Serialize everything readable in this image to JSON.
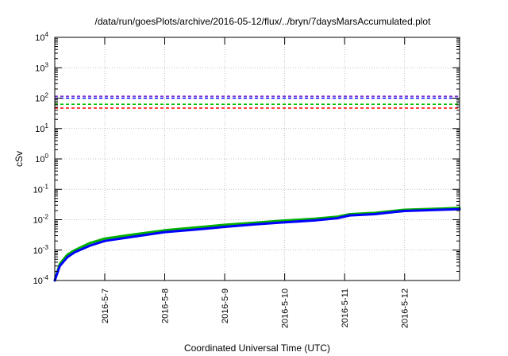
{
  "chart_data": {
    "type": "line",
    "title": "/data/run/goesPlots/archive/2016-05-12/flux/../bryn/7daysMarsAccumulated.plot",
    "xlabel": "Coordinated Universal Time (UTC)",
    "ylabel": "cSv",
    "yscale": "log",
    "ylim_exp": [
      -4,
      4
    ],
    "y_tick_base": "10",
    "y_tick_exponents": [
      "-4",
      "-3",
      "-2",
      "-1",
      "0",
      "1",
      "2",
      "3",
      "4"
    ],
    "xlim": [
      "2016-05-06T04:00",
      "2016-05-12T22:00"
    ],
    "x_ticks": [
      "2016-5-7",
      "2016-5-8",
      "2016-5-9",
      "2016-5-10",
      "2016-5-11",
      "2016-5-12"
    ],
    "x_tick_dates": [
      "2016-05-07",
      "2016-05-08",
      "2016-05-09",
      "2016-05-10",
      "2016-05-11",
      "2016-05-12"
    ],
    "grid": true,
    "series": [
      {
        "color": "#00b000",
        "style": "solid",
        "x": [
          "2016-05-06T04:00",
          "2016-05-06T06:00",
          "2016-05-06T09:00",
          "2016-05-06T12:00",
          "2016-05-06T18:00",
          "2016-05-07T00:00",
          "2016-05-07T12:00",
          "2016-05-08T00:00",
          "2016-05-08T12:00",
          "2016-05-09T00:00",
          "2016-05-09T12:00",
          "2016-05-10T00:00",
          "2016-05-10T12:00",
          "2016-05-10T21:00",
          "2016-05-11T02:00",
          "2016-05-11T12:00",
          "2016-05-11T20:00",
          "2016-05-12T00:00",
          "2016-05-12T12:00",
          "2016-05-12T22:00"
        ],
        "y": [
          0.0001,
          0.00035,
          0.0007,
          0.001,
          0.0017,
          0.0024,
          0.0033,
          0.0045,
          0.0055,
          0.0068,
          0.008,
          0.0094,
          0.0108,
          0.0125,
          0.0152,
          0.0168,
          0.0198,
          0.0212,
          0.0228,
          0.0245
        ]
      },
      {
        "color": "#0000ff",
        "style": "solid",
        "x": [
          "2016-05-06T04:00",
          "2016-05-06T06:00",
          "2016-05-06T09:00",
          "2016-05-06T12:00",
          "2016-05-06T18:00",
          "2016-05-07T00:00",
          "2016-05-07T12:00",
          "2016-05-08T00:00",
          "2016-05-08T12:00",
          "2016-05-09T00:00",
          "2016-05-09T12:00",
          "2016-05-10T00:00",
          "2016-05-10T12:00",
          "2016-05-10T21:00",
          "2016-05-11T02:00",
          "2016-05-11T12:00",
          "2016-05-11T20:00",
          "2016-05-12T00:00",
          "2016-05-12T12:00",
          "2016-05-12T22:00"
        ],
        "y": [
          0.0001,
          0.0003,
          0.00058,
          0.00085,
          0.0014,
          0.002,
          0.0028,
          0.0039,
          0.0047,
          0.0058,
          0.007,
          0.0082,
          0.0095,
          0.0112,
          0.0138,
          0.0152,
          0.018,
          0.0194,
          0.0208,
          0.0222
        ]
      },
      {
        "color": "#7b2fd0",
        "style": "dashed",
        "x": [
          "2016-05-06T04:00",
          "2016-05-12T22:00"
        ],
        "y": [
          115,
          115
        ]
      },
      {
        "color": "#0000ff",
        "style": "dashed",
        "x": [
          "2016-05-06T04:00",
          "2016-05-12T22:00"
        ],
        "y": [
          100,
          100
        ]
      },
      {
        "color": "#00c000",
        "style": "dashed",
        "x": [
          "2016-05-06T04:00",
          "2016-05-12T22:00"
        ],
        "y": [
          63,
          63
        ]
      },
      {
        "color": "#ff0000",
        "style": "dashed",
        "x": [
          "2016-05-06T04:00",
          "2016-05-12T22:00"
        ],
        "y": [
          47,
          47
        ]
      }
    ]
  }
}
